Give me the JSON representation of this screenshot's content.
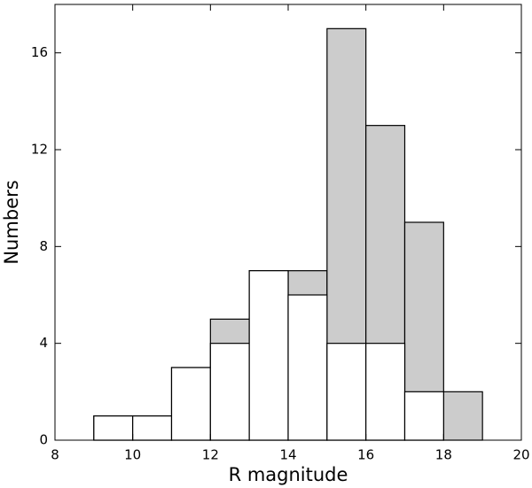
{
  "chart_data": {
    "type": "histogram",
    "xlabel": "R   magnitude",
    "ylabel": "Numbers",
    "bins": [
      9,
      10,
      11,
      12,
      13,
      14,
      15,
      16,
      17,
      18,
      19
    ],
    "series": [
      {
        "color": "#cccccc",
        "values": [
          1,
          1,
          3,
          5,
          7,
          7,
          17,
          13,
          9,
          2
        ]
      },
      {
        "color": "#ffffff",
        "values": [
          1,
          1,
          3,
          4,
          7,
          6,
          4,
          4,
          2,
          0
        ]
      }
    ],
    "xlim": [
      8,
      20
    ],
    "xticks": [
      8,
      10,
      12,
      14,
      16,
      18,
      20
    ],
    "ylim": [
      0,
      18
    ],
    "yticks": [
      0,
      4,
      8,
      12,
      16
    ]
  }
}
